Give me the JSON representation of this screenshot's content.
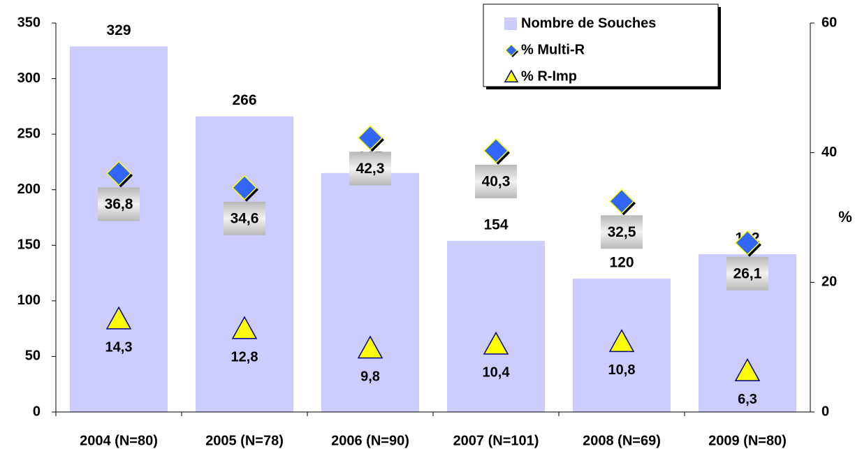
{
  "chart_data": {
    "type": "bar",
    "categories": [
      "2004 (N=80)",
      "2005 (N=78)",
      "2006 (N=90)",
      "2007 (N=101)",
      "2008 (N=69)",
      "2009 (N=80)"
    ],
    "series": [
      {
        "name": "Nombre de Souches",
        "type": "bar",
        "color": "#ccccff",
        "values": [
          329,
          266,
          215,
          154,
          120,
          142
        ]
      },
      {
        "name": "% Multi-R",
        "type": "scatter",
        "marker": "diamond",
        "axis": "y2",
        "color": "#3366ff",
        "values": [
          36.8,
          34.6,
          42.3,
          40.3,
          32.5,
          26.1
        ],
        "value_labels": [
          "36,8",
          "34,6",
          "42,3",
          "40,3",
          "32,5",
          "26,1"
        ]
      },
      {
        "name": "% R-Imp",
        "type": "scatter",
        "marker": "triangle",
        "axis": "y2",
        "color": "#ffff00",
        "values": [
          14.3,
          12.8,
          9.8,
          10.4,
          10.8,
          6.3
        ],
        "value_labels": [
          "14,3",
          "12,8",
          "9,8",
          "10,4",
          "10,8",
          "6,3"
        ]
      }
    ],
    "ylim": [
      0,
      350
    ],
    "yticks": [
      0,
      50,
      100,
      150,
      200,
      250,
      300,
      350
    ],
    "y2lim": [
      0,
      60
    ],
    "y2ticks": [
      0,
      20,
      40,
      60
    ],
    "y2label": "%",
    "legend": "top-right"
  }
}
